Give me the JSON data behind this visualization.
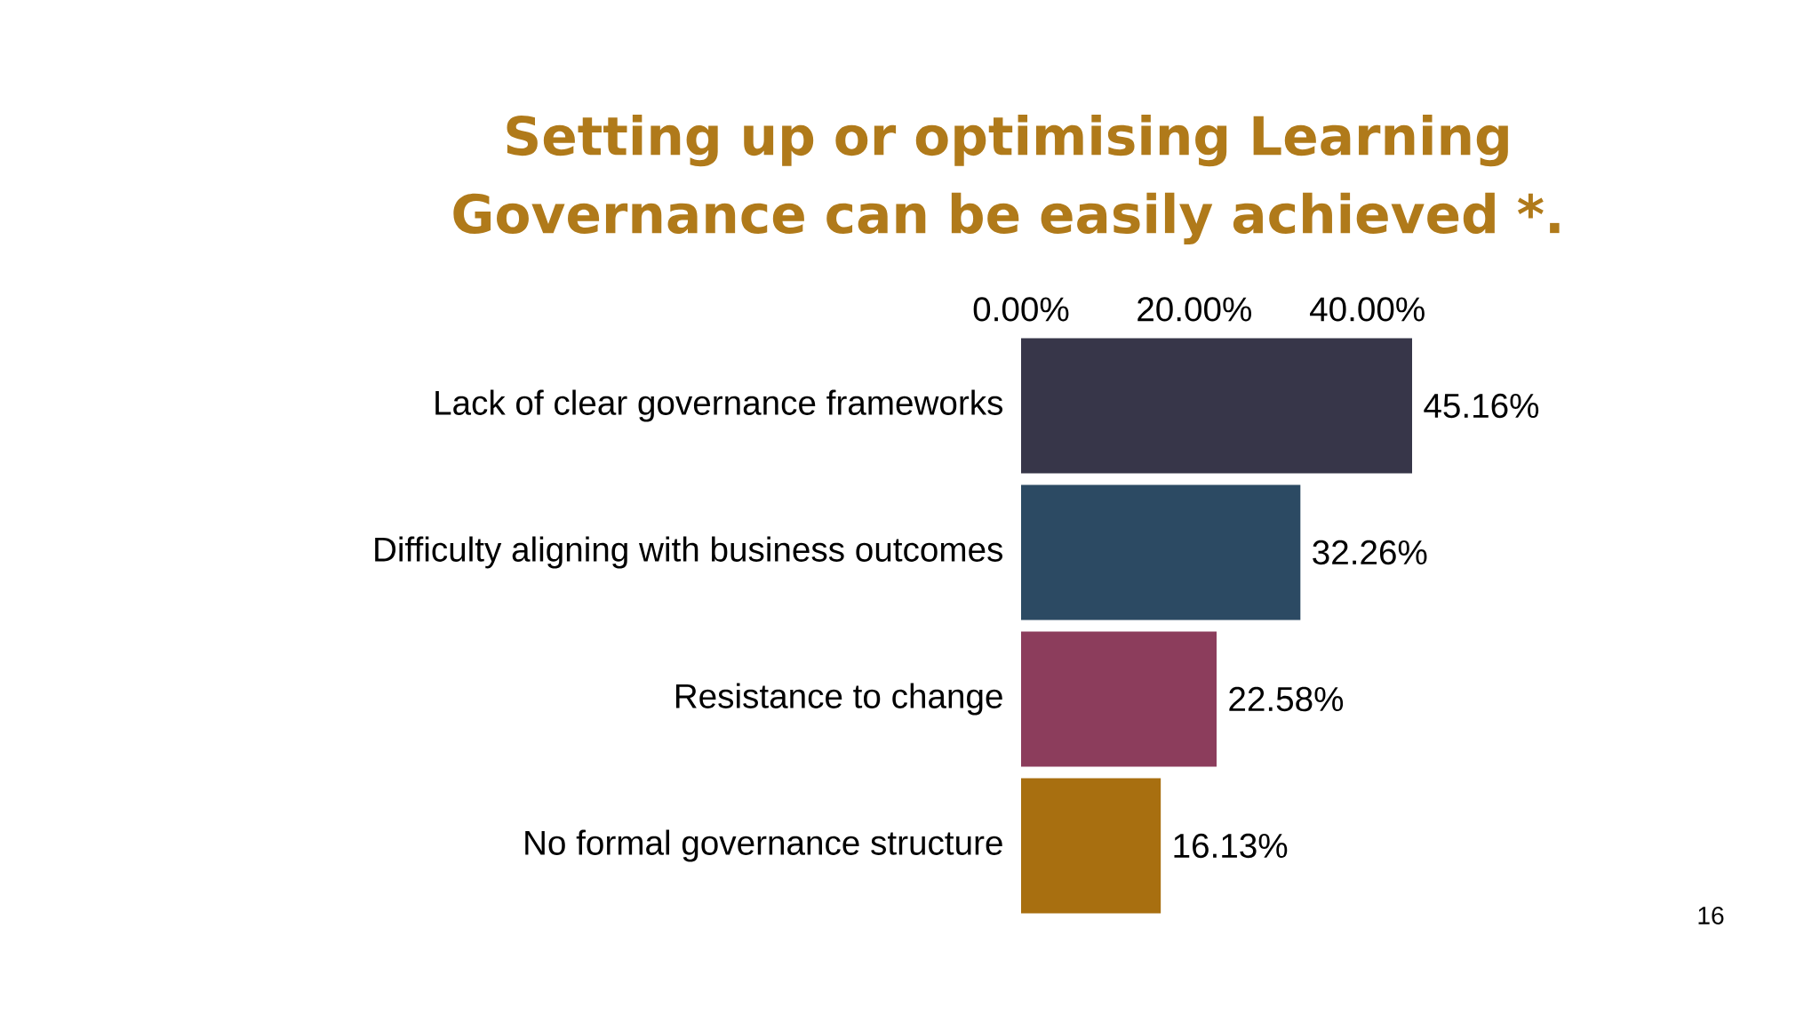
{
  "chart_data": {
    "type": "bar",
    "orientation": "horizontal",
    "title": "Setting up or optimising Learning Governance can be easily achieved *.",
    "categories": [
      "Lack of clear governance frameworks",
      "Difficulty aligning with business outcomes",
      "Resistance to change",
      "No formal governance structure"
    ],
    "values": [
      45.16,
      32.26,
      22.58,
      16.13
    ],
    "colors": [
      "#373649",
      "#2c4a63",
      "#8c3d5c",
      "#a86f10"
    ],
    "value_labels": [
      "45.16%",
      "32.26%",
      "22.58%",
      "16.13%"
    ],
    "xlim": [
      0,
      45.16
    ],
    "xticks": [
      {
        "value": 0,
        "label": "0.00%"
      },
      {
        "value": 20,
        "label": "20.00%"
      },
      {
        "value": 40,
        "label": "40.00%"
      }
    ],
    "annotations": [
      "16"
    ]
  }
}
